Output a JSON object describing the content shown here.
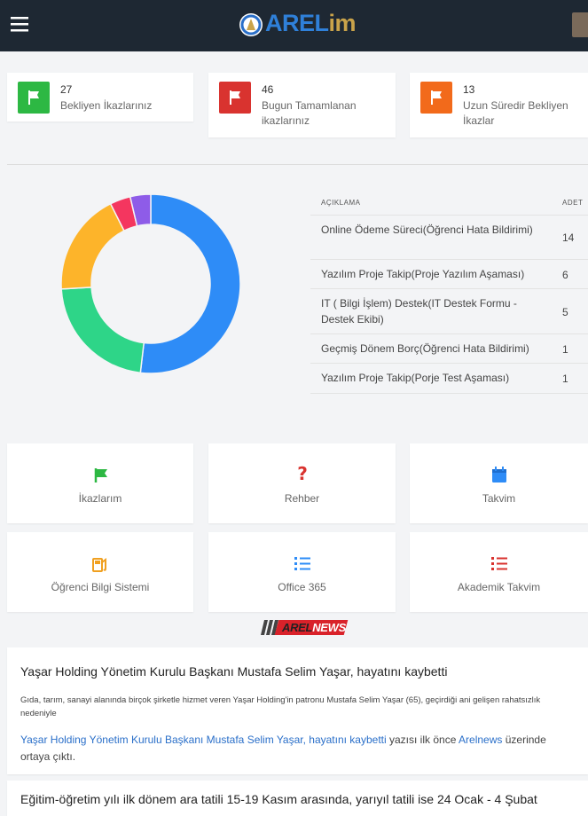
{
  "header": {
    "logo_main": "AREL",
    "logo_suffix": "im"
  },
  "stats": [
    {
      "count": 27,
      "label": "Bekliyen İkazlarınız",
      "color": "#2db843"
    },
    {
      "count": 46,
      "label": "Bugun Tamamlanan ikazlarınız",
      "color": "#d9332f"
    },
    {
      "count": 13,
      "label": "Uzun Süredir Bekliyen İkazlar",
      "color": "#f26a1b"
    }
  ],
  "summary_table": {
    "columns": [
      "AÇIKLAMA",
      "ADET"
    ],
    "rows": [
      {
        "label": "Online Ödeme Süreci(Öğrenci Hata Bildirimi)",
        "count": 14,
        "color": "#2e8cf7"
      },
      {
        "label": "Yazılım Proje Takip(Proje Yazılım Aşaması)",
        "count": 6,
        "color": "#2ed588"
      },
      {
        "label": "IT ( Bilgi İşlem) Destek(IT Destek Formu - Destek Ekibi)",
        "count": 5,
        "color": "#fdb42a"
      },
      {
        "label": "Geçmiş Dönem Borç(Öğrenci Hata Bildirimi)",
        "count": 1,
        "color": "#f4365f"
      },
      {
        "label": "Yazılım Proje Takip(Porje Test Aşaması)",
        "count": 1,
        "color": "#8e5ce8"
      }
    ]
  },
  "tiles": [
    "İkazlarım",
    "Rehber",
    "Takvim",
    "Öğrenci Bilgi Sistemi",
    "Office 365",
    "Akademik Takvim"
  ],
  "news_logo": {
    "left": "AREL",
    "right": "NEWS"
  },
  "news": [
    {
      "title": "Yaşar Holding Yönetim Kurulu Başkanı Mustafa Selim Yaşar, hayatını kaybetti",
      "summary": "Gıda, tarım, sanayi alanında birçok şirketle hizmet veren Yaşar Holding'in patronu Mustafa Selim Yaşar (65), geçirdiği ani gelişen rahatsızlık nedeniyle",
      "link_title": "Yaşar Holding Yönetim Kurulu Başkanı Mustafa Selim Yaşar, hayatını kaybetti",
      "middle": " yazısı ilk önce ",
      "source": "Arelnews",
      "end": " üzerinde ortaya çıktı."
    },
    {
      "title": "Eğitim-öğretim yılı ilk dönem ara tatili 15-19 Kasım arasında, yarıyıl tatili ise 24 Ocak - 4 Şubat"
    }
  ]
}
